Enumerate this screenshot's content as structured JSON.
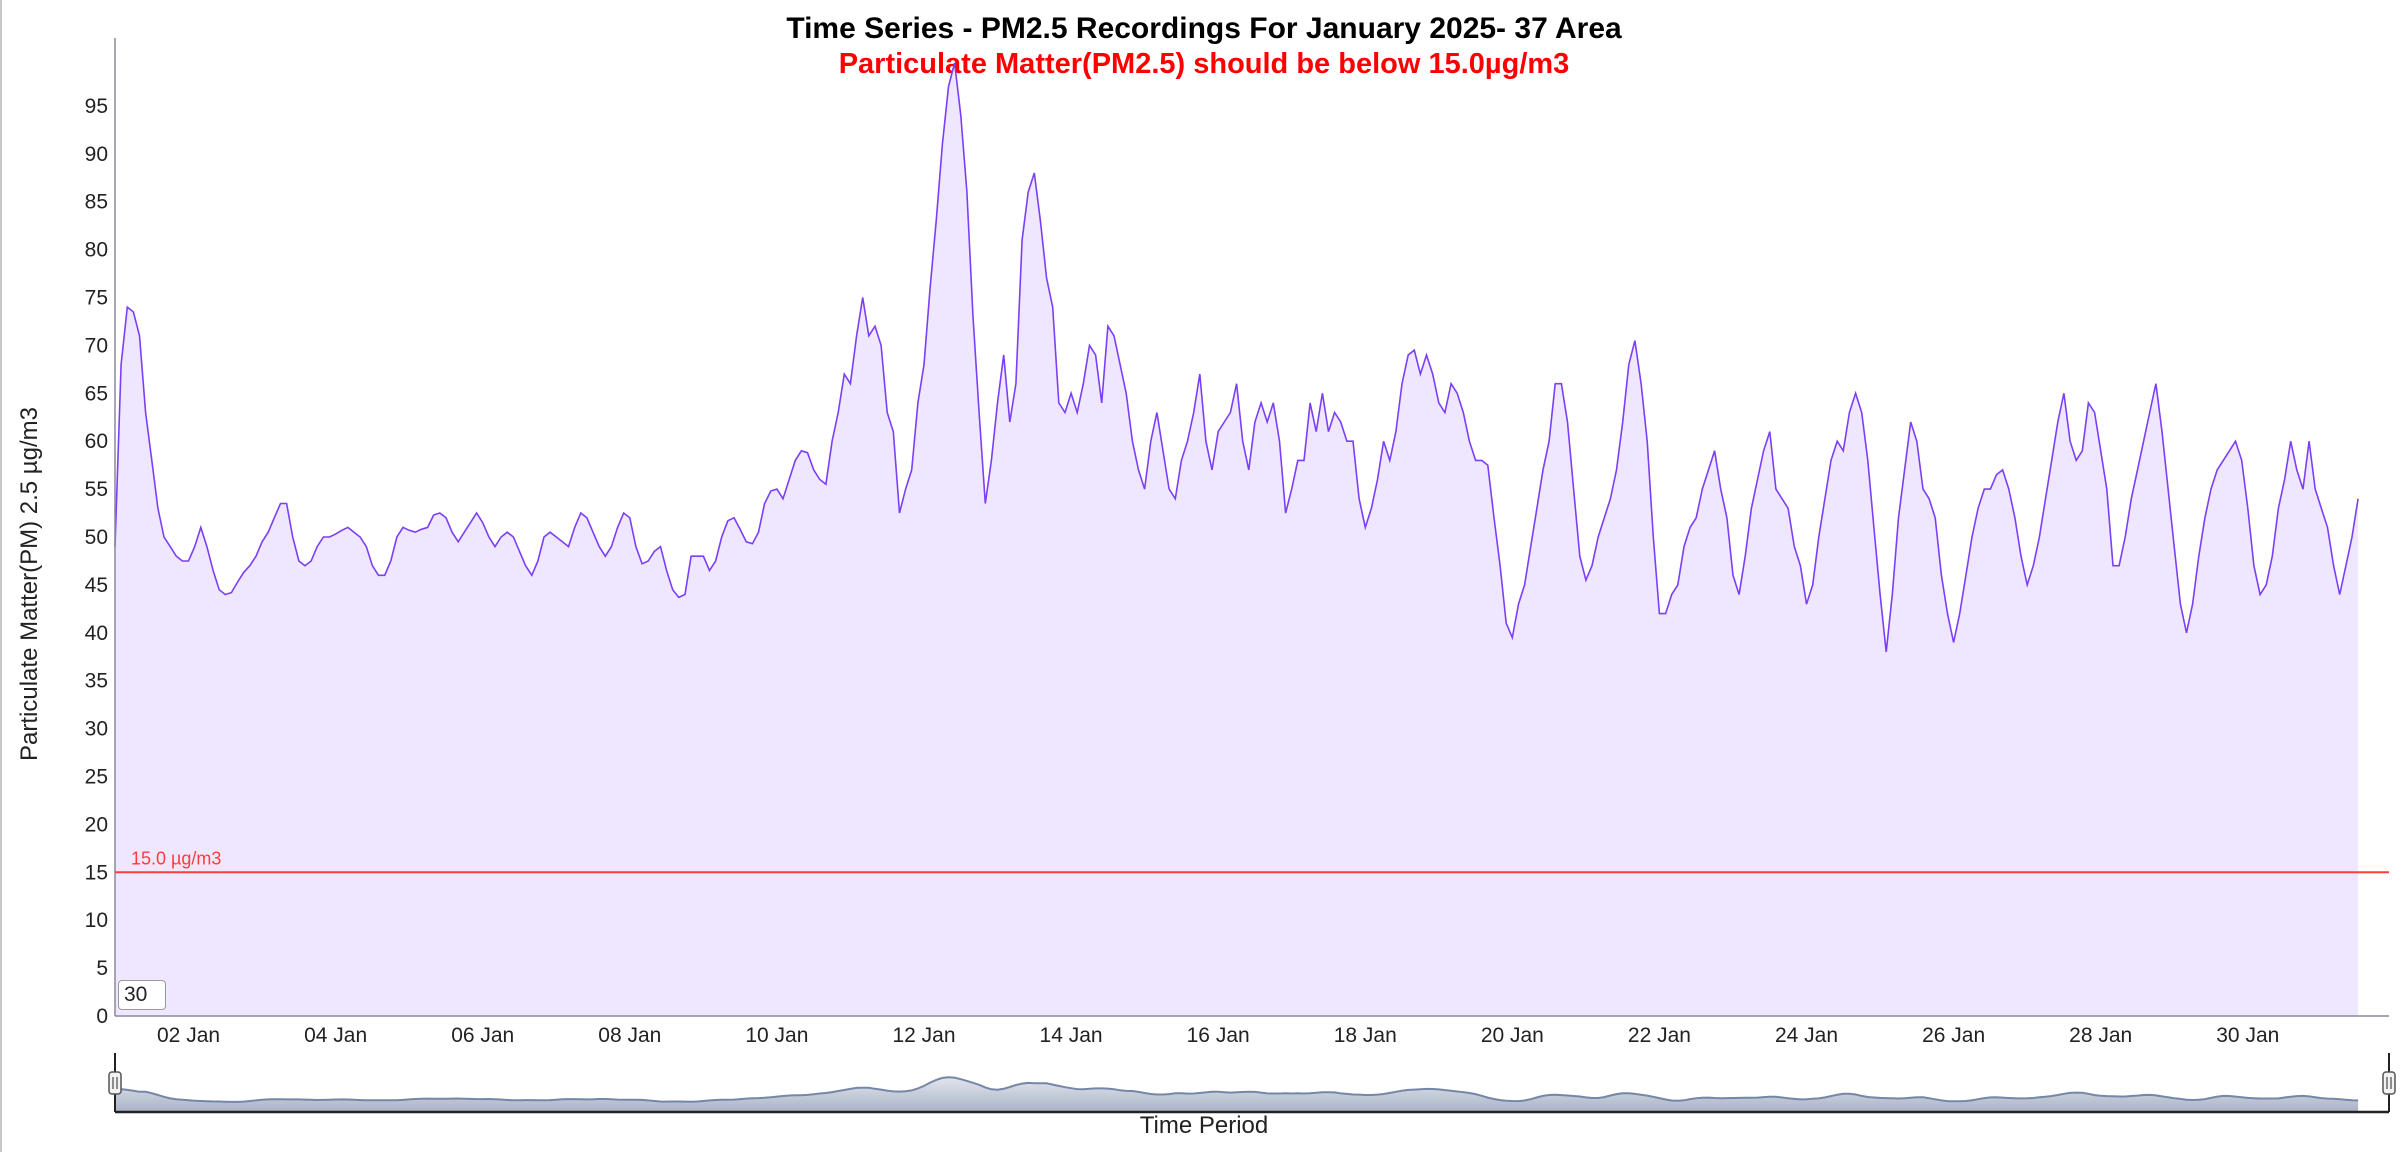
{
  "chart_data": {
    "type": "area",
    "title": "Time Series - PM2.5 Recordings For January 2025- 37 Area",
    "subtitle": "Particulate Matter(PM2.5) should be below 15.0µg/m3",
    "xlabel": "Time Period",
    "ylabel": "Particulate Matter(PM) 2.5 µg/m3",
    "ylim": [
      0,
      100
    ],
    "yticks": [
      0,
      5,
      10,
      15,
      20,
      25,
      30,
      35,
      40,
      45,
      50,
      55,
      60,
      65,
      70,
      75,
      80,
      85,
      90,
      95
    ],
    "xticks": [
      {
        "day": 2,
        "label": "02 Jan"
      },
      {
        "day": 4,
        "label": "04 Jan"
      },
      {
        "day": 6,
        "label": "06 Jan"
      },
      {
        "day": 8,
        "label": "08 Jan"
      },
      {
        "day": 10,
        "label": "10 Jan"
      },
      {
        "day": 12,
        "label": "12 Jan"
      },
      {
        "day": 14,
        "label": "14 Jan"
      },
      {
        "day": 16,
        "label": "16 Jan"
      },
      {
        "day": 18,
        "label": "18 Jan"
      },
      {
        "day": 20,
        "label": "20 Jan"
      },
      {
        "day": 22,
        "label": "22 Jan"
      },
      {
        "day": 24,
        "label": "24 Jan"
      },
      {
        "day": 26,
        "label": "26 Jan"
      },
      {
        "day": 28,
        "label": "28 Jan"
      },
      {
        "day": 30,
        "label": "30 Jan"
      }
    ],
    "xlim_days": [
      1,
      31.92
    ],
    "start_day": 1,
    "step_hours": 2,
    "threshold": {
      "value": 15.0,
      "label": "15.0 µg/m3"
    },
    "grid": false,
    "legend": "none",
    "series": [
      {
        "name": "PM2.5",
        "values": [
          49,
          68,
          74,
          73.5,
          71,
          63,
          58,
          53,
          50,
          49,
          48,
          47.5,
          47.5,
          49,
          51,
          49,
          46.5,
          44.5,
          44,
          44.2,
          45.3,
          46.3,
          47,
          48,
          49.5,
          50.5,
          52,
          53.5,
          53.5,
          50,
          47.5,
          47,
          47.5,
          49,
          50,
          50,
          50.3,
          50.7,
          51,
          50.5,
          50,
          49,
          47,
          46,
          46,
          47.5,
          50,
          51,
          50.7,
          50.5,
          50.8,
          51,
          52.3,
          52.5,
          52,
          50.5,
          49.5,
          50.5,
          51.5,
          52.5,
          51.5,
          50,
          49,
          50,
          50.5,
          50,
          48.5,
          47,
          46,
          47.5,
          50,
          50.5,
          50,
          49.5,
          49,
          51,
          52.5,
          52,
          50.5,
          49,
          48,
          49,
          51,
          52.5,
          52,
          49,
          47.2,
          47.5,
          48.5,
          49,
          46.5,
          44.5,
          43.7,
          44,
          48,
          48,
          48,
          46.5,
          47.5,
          50,
          51.7,
          52,
          50.8,
          49.5,
          49.3,
          50.5,
          53.5,
          54.8,
          55,
          54,
          56,
          58,
          59,
          58.8,
          57,
          56,
          55.5,
          60,
          63,
          67,
          66,
          71,
          75,
          71,
          72,
          70,
          63,
          61,
          52.5,
          55,
          57,
          64,
          68,
          76,
          83,
          91,
          97,
          99.5,
          94,
          86,
          73,
          63,
          53.5,
          58,
          64,
          69,
          62,
          66,
          81,
          86,
          88,
          83,
          77,
          74,
          64,
          63,
          65,
          63,
          66,
          70,
          69,
          64,
          72,
          71,
          68,
          65,
          60,
          57,
          55,
          60,
          63,
          59,
          55,
          54,
          58,
          60,
          63,
          67,
          60,
          57,
          61,
          62,
          63,
          66,
          60,
          57,
          62,
          64,
          62,
          64,
          60,
          52.5,
          55,
          58,
          58,
          64,
          61,
          65,
          61,
          63,
          62,
          60,
          60,
          54,
          51,
          53,
          56,
          60,
          58,
          61,
          66,
          69,
          69.5,
          67,
          69,
          67,
          64,
          63,
          66,
          65,
          63,
          60,
          58,
          58,
          57.5,
          52,
          47,
          41,
          39.5,
          43,
          45,
          49,
          53,
          57,
          60,
          66,
          66,
          62,
          55,
          48,
          45.5,
          47,
          50,
          52,
          54,
          57,
          62,
          68,
          70.5,
          66,
          60,
          50,
          42,
          42,
          44,
          45,
          49,
          51,
          52,
          55,
          57,
          59,
          55,
          52,
          46,
          44,
          48,
          53,
          56,
          59,
          61,
          55,
          54,
          53,
          49,
          47,
          43,
          45,
          50,
          54,
          58,
          60,
          59,
          63,
          65,
          63,
          58,
          51,
          44,
          38,
          44,
          52,
          57,
          62,
          60,
          55,
          54,
          52,
          46,
          42,
          39,
          42,
          46,
          50,
          53,
          55,
          55,
          56.5,
          57,
          55,
          52,
          48,
          45,
          47,
          50,
          54,
          58,
          62,
          65,
          60,
          58,
          59,
          64,
          63,
          59,
          55,
          47,
          47,
          50,
          54,
          57,
          60,
          63,
          66,
          61,
          55,
          49,
          43,
          40,
          43,
          48,
          52,
          55,
          57,
          58,
          59,
          60,
          58,
          53,
          47,
          44,
          45,
          48,
          53,
          56,
          60,
          57,
          55,
          60,
          55,
          53,
          51,
          47,
          44,
          47,
          50,
          54
        ]
      }
    ]
  },
  "colors": {
    "line": "#7b3ff5",
    "fill": "#efe7ff",
    "threshold": "#ff3b3b",
    "navigator_line": "#7587a8",
    "navigator_fill_top": "#e2e5ec",
    "navigator_fill_bottom": "#a9b3c7"
  },
  "controls": {
    "range_input_value": "30"
  }
}
